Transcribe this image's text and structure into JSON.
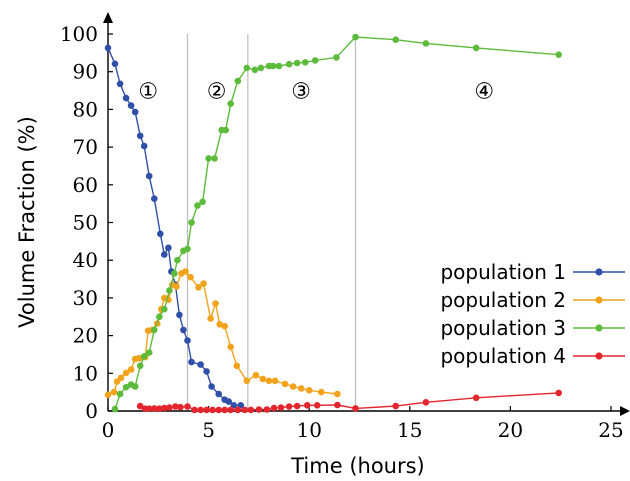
{
  "chart_data": {
    "type": "line",
    "title": "",
    "xlabel": "Time (hours)",
    "ylabel": "Volume Fraction (%)",
    "xlim": [
      0,
      25
    ],
    "ylim": [
      0,
      100
    ],
    "xticks": [
      0,
      5,
      10,
      15,
      20,
      25
    ],
    "yticks": [
      0,
      10,
      20,
      30,
      40,
      50,
      60,
      70,
      80,
      90,
      100
    ],
    "grid": false,
    "legend_position": "right",
    "phase_boundaries": [
      3.95,
      6.95,
      12.3
    ],
    "phase_labels": [
      {
        "text": "①",
        "x": 2.0,
        "y": 85
      },
      {
        "text": "②",
        "x": 5.4,
        "y": 85
      },
      {
        "text": "③",
        "x": 9.6,
        "y": 85
      },
      {
        "text": "④",
        "x": 18.7,
        "y": 85
      }
    ],
    "series": [
      {
        "name": "population 1",
        "color": "#2f4fa8",
        "points": [
          [
            0.0,
            96.3
          ],
          [
            0.35,
            92.1
          ],
          [
            0.6,
            86.8
          ],
          [
            0.9,
            83.0
          ],
          [
            1.15,
            81.0
          ],
          [
            1.35,
            79.3
          ],
          [
            1.6,
            73.0
          ],
          [
            1.8,
            70.3
          ],
          [
            2.05,
            62.3
          ],
          [
            2.3,
            56.3
          ],
          [
            2.6,
            47.0
          ],
          [
            2.8,
            41.5
          ],
          [
            3.0,
            43.3
          ],
          [
            3.15,
            37.0
          ],
          [
            3.35,
            33.5
          ],
          [
            3.55,
            25.5
          ],
          [
            3.75,
            21.5
          ],
          [
            3.95,
            18.7
          ],
          [
            4.15,
            13.0
          ],
          [
            4.6,
            12.3
          ],
          [
            4.9,
            10.5
          ],
          [
            5.15,
            6.5
          ],
          [
            5.5,
            4.5
          ],
          [
            5.8,
            3.0
          ],
          [
            6.0,
            2.5
          ],
          [
            6.25,
            1.5
          ],
          [
            6.6,
            1.5
          ]
        ]
      },
      {
        "name": "population 2",
        "color": "#f2a31b",
        "points": [
          [
            0.0,
            4.3
          ],
          [
            0.3,
            5.0
          ],
          [
            0.45,
            7.8
          ],
          [
            0.65,
            8.8
          ],
          [
            0.9,
            10.1
          ],
          [
            1.15,
            11.0
          ],
          [
            1.35,
            13.8
          ],
          [
            1.55,
            14.0
          ],
          [
            1.85,
            14.3
          ],
          [
            2.0,
            21.3
          ],
          [
            2.2,
            21.5
          ],
          [
            2.45,
            23.2
          ],
          [
            2.65,
            27.0
          ],
          [
            2.8,
            30.0
          ],
          [
            3.0,
            29.5
          ],
          [
            3.2,
            33.5
          ],
          [
            3.4,
            33.0
          ],
          [
            3.65,
            36.5
          ],
          [
            3.85,
            37.0
          ],
          [
            4.1,
            35.5
          ],
          [
            4.5,
            32.8
          ],
          [
            4.75,
            33.8
          ],
          [
            5.1,
            24.5
          ],
          [
            5.35,
            28.5
          ],
          [
            5.55,
            23.0
          ],
          [
            5.8,
            22.5
          ],
          [
            6.1,
            17.0
          ],
          [
            6.4,
            12.0
          ],
          [
            6.9,
            8.0
          ],
          [
            7.35,
            9.5
          ],
          [
            7.7,
            8.5
          ],
          [
            8.0,
            8.0
          ],
          [
            8.3,
            8.0
          ],
          [
            8.8,
            7.2
          ],
          [
            9.2,
            6.5
          ],
          [
            9.6,
            6.0
          ],
          [
            10.0,
            5.5
          ],
          [
            10.6,
            5.0
          ],
          [
            11.4,
            4.5
          ]
        ]
      },
      {
        "name": "population 3",
        "color": "#5dbb3c",
        "points": [
          [
            0.35,
            0.5
          ],
          [
            0.6,
            4.5
          ],
          [
            0.9,
            6.3
          ],
          [
            1.15,
            7.0
          ],
          [
            1.35,
            6.5
          ],
          [
            1.6,
            12.0
          ],
          [
            1.8,
            14.5
          ],
          [
            2.05,
            15.5
          ],
          [
            2.3,
            21.5
          ],
          [
            2.55,
            25.0
          ],
          [
            2.8,
            27.0
          ],
          [
            3.05,
            32.0
          ],
          [
            3.3,
            36.5
          ],
          [
            3.45,
            40.0
          ],
          [
            3.75,
            42.5
          ],
          [
            3.95,
            43.0
          ],
          [
            4.15,
            50.0
          ],
          [
            4.45,
            54.5
          ],
          [
            4.7,
            55.5
          ],
          [
            5.0,
            67.0
          ],
          [
            5.3,
            67.0
          ],
          [
            5.65,
            74.5
          ],
          [
            5.85,
            74.5
          ],
          [
            6.1,
            81.5
          ],
          [
            6.45,
            87.5
          ],
          [
            6.9,
            91.0
          ],
          [
            7.3,
            90.5
          ],
          [
            7.6,
            91.0
          ],
          [
            8.0,
            91.5
          ],
          [
            8.2,
            91.5
          ],
          [
            8.5,
            91.5
          ],
          [
            9.0,
            92.0
          ],
          [
            9.4,
            92.3
          ],
          [
            9.8,
            92.5
          ],
          [
            10.3,
            93.0
          ],
          [
            11.35,
            93.8
          ],
          [
            12.3,
            99.2
          ],
          [
            14.3,
            98.5
          ],
          [
            15.8,
            97.5
          ],
          [
            18.3,
            96.3
          ],
          [
            22.4,
            94.5
          ]
        ]
      },
      {
        "name": "population 4",
        "color": "#e3262e",
        "points": [
          [
            1.6,
            1.3
          ],
          [
            1.85,
            0.6
          ],
          [
            2.05,
            0.6
          ],
          [
            2.3,
            0.7
          ],
          [
            2.55,
            0.6
          ],
          [
            2.8,
            0.8
          ],
          [
            3.05,
            0.9
          ],
          [
            3.35,
            1.2
          ],
          [
            3.6,
            1.0
          ],
          [
            3.95,
            1.2
          ],
          [
            4.3,
            0.3
          ],
          [
            4.6,
            0.3
          ],
          [
            4.9,
            0.3
          ],
          [
            5.2,
            0.3
          ],
          [
            5.5,
            0.3
          ],
          [
            5.8,
            0.3
          ],
          [
            6.1,
            0.3
          ],
          [
            6.45,
            0.3
          ],
          [
            6.8,
            0.3
          ],
          [
            7.1,
            0.3
          ],
          [
            7.5,
            0.4
          ],
          [
            7.9,
            0.4
          ],
          [
            8.25,
            0.8
          ],
          [
            8.6,
            0.9
          ],
          [
            9.0,
            1.2
          ],
          [
            9.4,
            1.3
          ],
          [
            9.9,
            1.5
          ],
          [
            10.4,
            1.5
          ],
          [
            11.4,
            1.6
          ],
          [
            12.3,
            0.7
          ],
          [
            14.3,
            1.3
          ],
          [
            15.8,
            2.3
          ],
          [
            18.3,
            3.5
          ],
          [
            22.4,
            4.8
          ]
        ]
      }
    ]
  }
}
